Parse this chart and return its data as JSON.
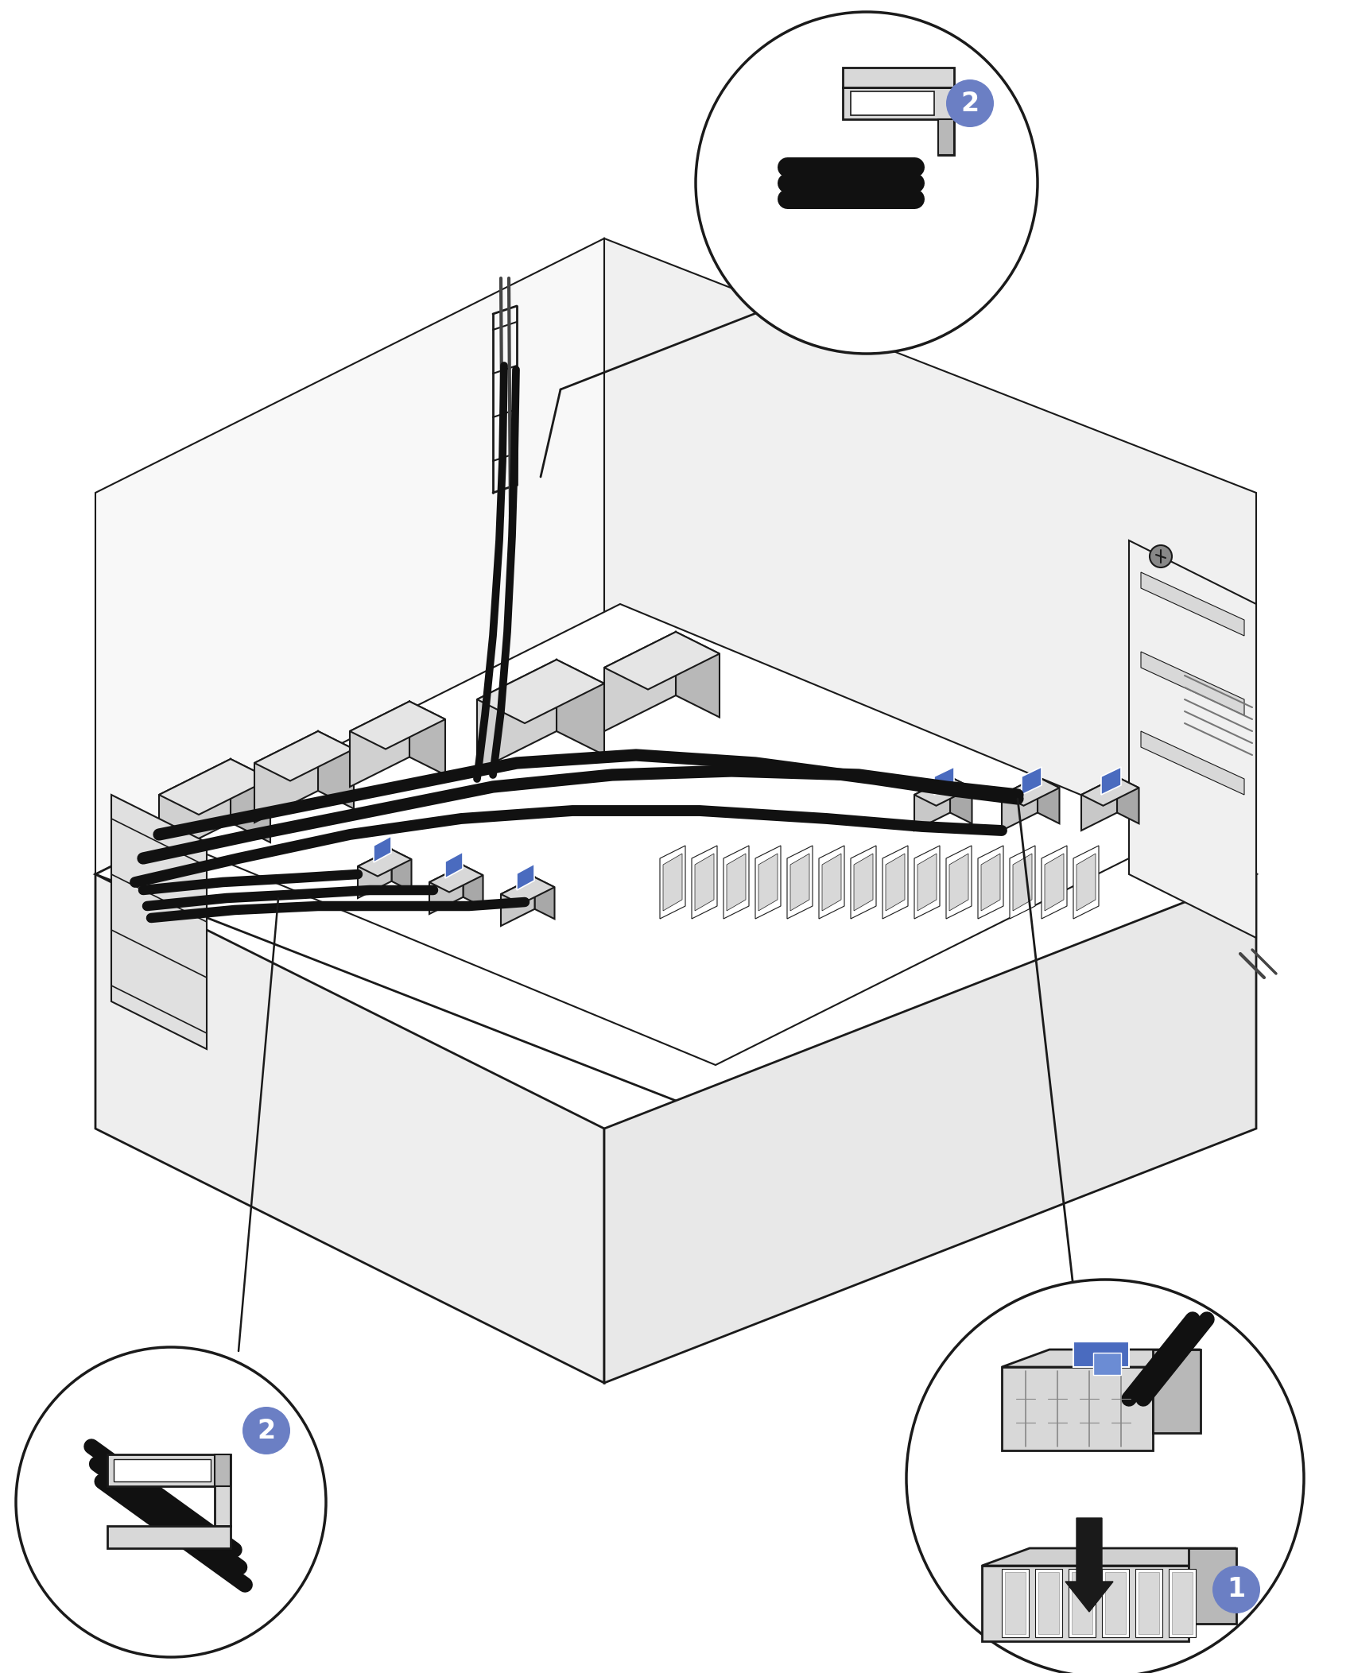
{
  "bg_color": "#ffffff",
  "line_color": "#1a1a1a",
  "light_gray": "#d8d8d8",
  "mid_gray": "#b8b8b8",
  "dark_gray": "#888888",
  "cable_color": "#111111",
  "blue_color": "#4a6bbf",
  "blue_light": "#6b8cd4",
  "badge_blue": "#6b7fc4",
  "badge_text": "#ffffff",
  "fig_width": 16.99,
  "fig_height": 21.05
}
